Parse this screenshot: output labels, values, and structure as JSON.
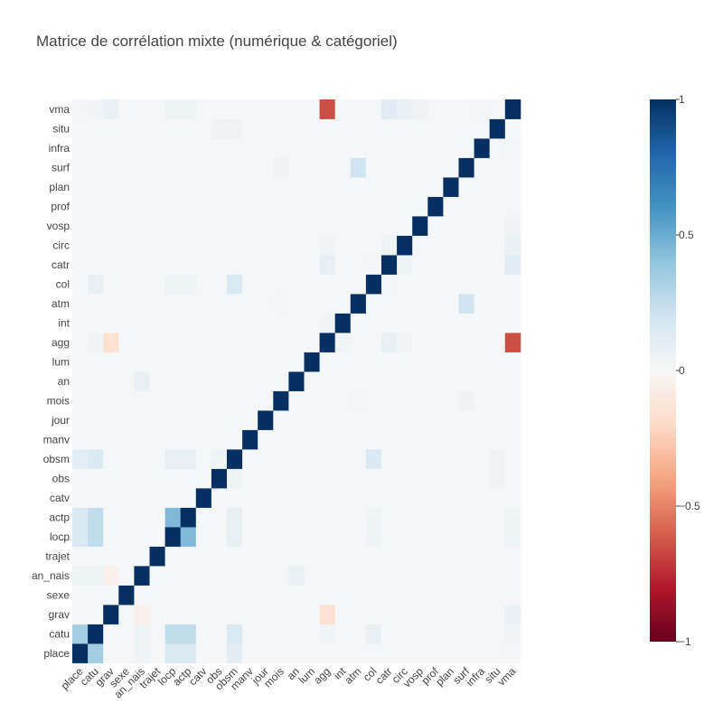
{
  "chart_data": {
    "type": "heatmap",
    "title": "Matrice de corrélation mixte (numérique & catégoriel)",
    "xlabel": "",
    "ylabel": "",
    "labels": [
      "place",
      "catu",
      "grav",
      "sexe",
      "an_nais",
      "trajet",
      "locp",
      "actp",
      "catv",
      "obs",
      "obsm",
      "manv",
      "jour",
      "mois",
      "an",
      "lum",
      "agg",
      "int",
      "atm",
      "col",
      "catr",
      "circ",
      "vosp",
      "prof",
      "plan",
      "surf",
      "infra",
      "situ",
      "vma"
    ],
    "colorscale": "RdBu",
    "zmin": -1,
    "zmax": 1,
    "colorbar_ticks": [
      {
        "value": 1,
        "label": "1"
      },
      {
        "value": 0.5,
        "label": "0.5"
      },
      {
        "value": 0,
        "label": "0"
      },
      {
        "value": -0.5,
        "label": "−0.5"
      },
      {
        "value": -1,
        "label": "−1"
      }
    ],
    "diagonal_value": 1,
    "background_value": 0.01,
    "pairs": [
      {
        "a": "place",
        "b": "catu",
        "value": 0.35
      },
      {
        "a": "place",
        "b": "locp",
        "value": 0.15
      },
      {
        "a": "place",
        "b": "actp",
        "value": 0.15
      },
      {
        "a": "place",
        "b": "obsm",
        "value": 0.1
      },
      {
        "a": "place",
        "b": "an_nais",
        "value": 0.05
      },
      {
        "a": "place",
        "b": "vma",
        "value": 0.02
      },
      {
        "a": "catu",
        "b": "locp",
        "value": 0.25
      },
      {
        "a": "catu",
        "b": "actp",
        "value": 0.25
      },
      {
        "a": "catu",
        "b": "obsm",
        "value": 0.15
      },
      {
        "a": "catu",
        "b": "col",
        "value": 0.08
      },
      {
        "a": "catu",
        "b": "an_nais",
        "value": 0.05
      },
      {
        "a": "catu",
        "b": "agg",
        "value": 0.03
      },
      {
        "a": "catu",
        "b": "vma",
        "value": 0.03
      },
      {
        "a": "grav",
        "b": "agg",
        "value": -0.15
      },
      {
        "a": "grav",
        "b": "an_nais",
        "value": -0.05
      },
      {
        "a": "grav",
        "b": "vma",
        "value": 0.07
      },
      {
        "a": "an_nais",
        "b": "an",
        "value": 0.07
      },
      {
        "a": "locp",
        "b": "actp",
        "value": 0.45
      },
      {
        "a": "locp",
        "b": "obsm",
        "value": 0.08
      },
      {
        "a": "locp",
        "b": "col",
        "value": 0.05
      },
      {
        "a": "locp",
        "b": "vma",
        "value": 0.05
      },
      {
        "a": "actp",
        "b": "obsm",
        "value": 0.08
      },
      {
        "a": "actp",
        "b": "col",
        "value": 0.05
      },
      {
        "a": "actp",
        "b": "vma",
        "value": 0.05
      },
      {
        "a": "obs",
        "b": "obsm",
        "value": 0.05
      },
      {
        "a": "obs",
        "b": "situ",
        "value": 0.04
      },
      {
        "a": "obsm",
        "b": "col",
        "value": 0.15
      },
      {
        "a": "obsm",
        "b": "situ",
        "value": 0.04
      },
      {
        "a": "mois",
        "b": "atm",
        "value": 0.02
      },
      {
        "a": "mois",
        "b": "surf",
        "value": 0.04
      },
      {
        "a": "agg",
        "b": "vma",
        "value": -0.65
      },
      {
        "a": "agg",
        "b": "catr",
        "value": 0.08
      },
      {
        "a": "agg",
        "b": "int",
        "value": 0.03
      },
      {
        "a": "agg",
        "b": "circ",
        "value": 0.03
      },
      {
        "a": "atm",
        "b": "surf",
        "value": 0.2
      },
      {
        "a": "catr",
        "b": "vma",
        "value": 0.12
      },
      {
        "a": "catr",
        "b": "circ",
        "value": 0.05
      },
      {
        "a": "circ",
        "b": "vma",
        "value": 0.07
      },
      {
        "a": "col",
        "b": "catr",
        "value": 0.02
      },
      {
        "a": "vosp",
        "b": "vma",
        "value": 0.04
      },
      {
        "a": "infra",
        "b": "vma",
        "value": 0.02
      }
    ]
  }
}
